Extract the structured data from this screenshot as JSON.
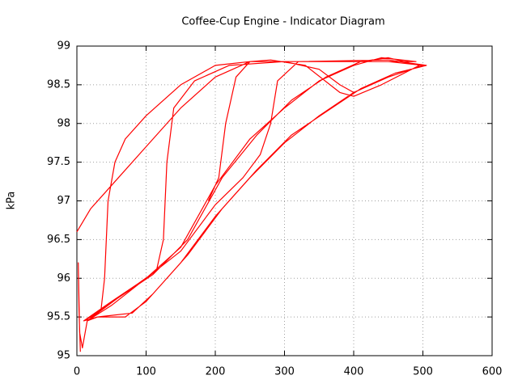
{
  "chart_data": {
    "type": "line",
    "title": "Coffee-Cup Engine - Indicator Diagram",
    "y_label": "kPa",
    "color": "#ff0000",
    "grid": true,
    "xlim": [
      0,
      600
    ],
    "xticks": [
      0,
      100,
      200,
      300,
      400,
      500,
      600
    ],
    "ylim": [
      95,
      99
    ],
    "yticks": [
      95,
      95.5,
      96,
      96.5,
      97,
      97.5,
      98,
      98.5,
      99
    ],
    "x": [
      0,
      20,
      60,
      100,
      150,
      200,
      250,
      300,
      350,
      380,
      400,
      null,
      5,
      3,
      2,
      4,
      8,
      15,
      30,
      70,
      100,
      150,
      200,
      250,
      300,
      350,
      400,
      450,
      500,
      450,
      350,
      250,
      200,
      150,
      100,
      70,
      55,
      45,
      40,
      35,
      20,
      10,
      50,
      100,
      150,
      200,
      250,
      300,
      350,
      400,
      440,
      490,
      400,
      300,
      220,
      170,
      140,
      130,
      125,
      115,
      60,
      20,
      10,
      30,
      80,
      110,
      160,
      210,
      260,
      310,
      360,
      410,
      460,
      505,
      450,
      320,
      290,
      280,
      265,
      240,
      200,
      150,
      100,
      50,
      15,
      60,
      110,
      160,
      210,
      260,
      310,
      360,
      410,
      450,
      495,
      440,
      400,
      380,
      330,
      280,
      250,
      230,
      215,
      205,
      190
    ],
    "values": [
      96.6,
      96.9,
      97.3,
      97.7,
      98.2,
      98.6,
      98.8,
      98.8,
      98.7,
      98.5,
      98.4,
      null,
      95.05,
      95.6,
      96.2,
      95.3,
      95.1,
      95.45,
      95.5,
      95.5,
      95.7,
      96.2,
      96.8,
      97.3,
      97.75,
      98.1,
      98.4,
      98.6,
      98.75,
      98.8,
      98.8,
      98.8,
      98.75,
      98.5,
      98.1,
      97.8,
      97.5,
      97,
      96,
      95.6,
      95.5,
      95.45,
      95.7,
      96,
      96.4,
      97.2,
      97.8,
      98.2,
      98.55,
      98.75,
      98.85,
      98.8,
      98.8,
      98.8,
      98.75,
      98.55,
      98.2,
      97.5,
      96.5,
      96.1,
      95.75,
      95.5,
      95.45,
      95.5,
      95.55,
      95.8,
      96.3,
      96.9,
      97.4,
      97.85,
      98.15,
      98.45,
      98.65,
      98.75,
      98.82,
      98.8,
      98.55,
      98.0,
      97.6,
      97.3,
      96.95,
      96.35,
      96.0,
      95.65,
      95.45,
      95.75,
      96.05,
      96.5,
      97.3,
      97.85,
      98.3,
      98.6,
      98.8,
      98.85,
      98.75,
      98.5,
      98.35,
      98.4,
      98.75,
      98.82,
      98.8,
      98.6,
      98.0,
      97.3,
      97.0
    ]
  }
}
